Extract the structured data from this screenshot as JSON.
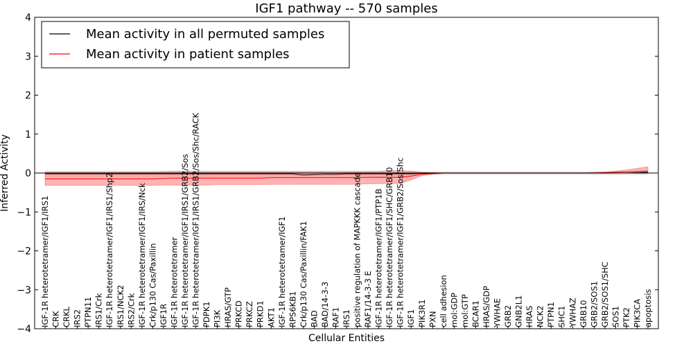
{
  "chart_data": {
    "type": "line",
    "title": "IGF1 pathway -- 570 samples",
    "xlabel": "Cellular Entities",
    "ylabel": "Inferred Activity",
    "ylim": [
      -4,
      4
    ],
    "yticks": [
      -4,
      -3,
      -2,
      -1,
      0,
      1,
      2,
      3,
      4
    ],
    "grid": false,
    "legend_position": "top-left",
    "categories": [
      "IGF-1R heterotetramer/IGF1/IRS1",
      "CRK",
      "CRKL",
      "IRS2",
      "PTPN11",
      "IRS1/Crk",
      "IGF-1R heterotetramer/IGF1/IRS1/Shp2",
      "IRS1/NCK2",
      "IRS2/Crk",
      "IGF-1R heterotetramer/IGF1/IRS/Nck",
      "Crk/p130 Cas/Paxillin",
      "IGF1R",
      "IGF-1R heterotetramer",
      "IGF-1R heterotetramer/IGF1/IRS1/GRB2/Sos",
      "IGF-1R heterotetramer/IGF1/IRS1/GRB2/Sos/Shc/RACK",
      "PDPK1",
      "PI3K",
      "HRAS/GTP",
      "PRKCD",
      "PRKCZ",
      "PRKD1",
      "AKT1",
      "IGF-1R heterotetramer/IGF1",
      "RPS6KB1",
      "Crk/p130 Cas/Paxillin/FAK1",
      "BAD",
      "BAD/14-3-3",
      "RAF1",
      "IRS1",
      "positive regulation of MAPKKK cascade",
      "RAF1/14-3-3 E",
      "IGF-1R heterotetramer/IGF1/PTP1B",
      "IGF-1R heterotetramer/IGF1/SHC/GRB10",
      "IGF-1R heterotetramer/IGF1/GRB2/Sos/Shc",
      "IGF1",
      "PIK3R1",
      "PXN",
      "cell adhesion",
      "mol:GDP",
      "mol:GTP",
      "BCAR1",
      "HRAS/GDP",
      "YWHAE",
      "GRB2",
      "GNB2L1",
      "HRAS",
      "NCK2",
      "PTPN1",
      "SHC1",
      "YWHAZ",
      "GRB10",
      "GRB2/SOS1",
      "GRB2/SOS1/SHC",
      "SOS1",
      "PTK2",
      "PIK3CA",
      "apoptosis"
    ],
    "series": [
      {
        "name": "Mean activity in all permuted samples",
        "color": "#000000",
        "values": [
          -0.02,
          -0.02,
          -0.02,
          -0.02,
          -0.02,
          -0.02,
          -0.02,
          -0.02,
          -0.02,
          -0.02,
          -0.02,
          -0.02,
          -0.02,
          -0.02,
          -0.02,
          -0.02,
          -0.02,
          -0.02,
          -0.02,
          -0.02,
          -0.02,
          -0.02,
          -0.02,
          -0.02,
          -0.05,
          -0.04,
          -0.03,
          -0.03,
          -0.02,
          -0.02,
          -0.02,
          -0.02,
          -0.02,
          -0.02,
          -0.02,
          -0.01,
          -0.01,
          0.0,
          0.0,
          0.0,
          0.0,
          0.0,
          0.0,
          0.0,
          0.0,
          0.0,
          0.0,
          0.0,
          0.0,
          0.0,
          0.0,
          0.0,
          0.0,
          0.0,
          0.0,
          0.01,
          0.02
        ],
        "band": {
          "color": "#cccccc",
          "lower": [
            -0.1,
            -0.1,
            -0.1,
            -0.1,
            -0.1,
            -0.1,
            -0.1,
            -0.1,
            -0.1,
            -0.1,
            -0.1,
            -0.1,
            -0.1,
            -0.1,
            -0.1,
            -0.1,
            -0.1,
            -0.1,
            -0.1,
            -0.1,
            -0.1,
            -0.1,
            -0.1,
            -0.1,
            -0.1,
            -0.1,
            -0.1,
            -0.1,
            -0.1,
            -0.1,
            -0.1,
            -0.1,
            -0.1,
            -0.1,
            -0.08,
            -0.06,
            -0.05,
            -0.05,
            -0.05,
            -0.05,
            -0.05,
            -0.05,
            -0.05,
            -0.05,
            -0.05,
            -0.05,
            -0.05,
            -0.05,
            -0.05,
            -0.05,
            -0.05,
            -0.05,
            -0.05,
            -0.05,
            -0.05,
            -0.05,
            -0.05
          ],
          "upper": [
            0.06,
            0.06,
            0.06,
            0.06,
            0.06,
            0.06,
            0.06,
            0.06,
            0.06,
            0.06,
            0.06,
            0.06,
            0.06,
            0.06,
            0.06,
            0.06,
            0.06,
            0.06,
            0.06,
            0.06,
            0.06,
            0.06,
            0.06,
            0.06,
            0.06,
            0.06,
            0.06,
            0.06,
            0.06,
            0.06,
            0.06,
            0.06,
            0.06,
            0.06,
            0.05,
            0.04,
            0.04,
            0.04,
            0.04,
            0.04,
            0.04,
            0.04,
            0.04,
            0.04,
            0.04,
            0.04,
            0.04,
            0.04,
            0.04,
            0.04,
            0.04,
            0.04,
            0.04,
            0.04,
            0.04,
            0.05,
            0.06
          ]
        }
      },
      {
        "name": "Mean activity in patient samples",
        "color": "#ff0000",
        "values": [
          -0.15,
          -0.15,
          -0.15,
          -0.15,
          -0.15,
          -0.15,
          -0.15,
          -0.15,
          -0.15,
          -0.15,
          -0.15,
          -0.14,
          -0.13,
          -0.13,
          -0.13,
          -0.13,
          -0.13,
          -0.13,
          -0.13,
          -0.13,
          -0.13,
          -0.12,
          -0.12,
          -0.12,
          -0.12,
          -0.12,
          -0.12,
          -0.12,
          -0.12,
          -0.12,
          -0.11,
          -0.11,
          -0.11,
          -0.11,
          -0.08,
          -0.03,
          -0.01,
          0.0,
          0.0,
          0.0,
          0.0,
          0.0,
          0.0,
          0.0,
          0.0,
          0.0,
          0.0,
          0.0,
          0.0,
          0.0,
          0.0,
          0.0,
          0.01,
          0.02,
          0.03,
          0.04,
          0.05
        ],
        "band": {
          "color": "#ff8080",
          "lower": [
            -0.32,
            -0.32,
            -0.32,
            -0.32,
            -0.32,
            -0.32,
            -0.32,
            -0.32,
            -0.32,
            -0.32,
            -0.32,
            -0.31,
            -0.31,
            -0.31,
            -0.31,
            -0.31,
            -0.3,
            -0.3,
            -0.3,
            -0.3,
            -0.3,
            -0.29,
            -0.29,
            -0.29,
            -0.29,
            -0.29,
            -0.29,
            -0.29,
            -0.29,
            -0.29,
            -0.28,
            -0.27,
            -0.27,
            -0.27,
            -0.18,
            -0.07,
            -0.03,
            -0.01,
            -0.01,
            -0.01,
            -0.01,
            -0.01,
            -0.01,
            -0.01,
            -0.01,
            -0.01,
            -0.01,
            -0.01,
            -0.01,
            -0.01,
            -0.01,
            -0.01,
            -0.01,
            0.0,
            0.0,
            0.0,
            0.0
          ],
          "upper": [
            0.02,
            0.02,
            0.02,
            0.02,
            0.02,
            0.02,
            0.02,
            0.02,
            0.02,
            0.02,
            0.02,
            0.03,
            0.04,
            0.04,
            0.04,
            0.03,
            0.03,
            0.03,
            0.03,
            0.03,
            0.03,
            0.03,
            0.03,
            0.03,
            0.03,
            0.03,
            0.03,
            0.03,
            0.03,
            0.03,
            0.03,
            0.04,
            0.06,
            0.06,
            0.05,
            0.02,
            0.01,
            0.01,
            0.01,
            0.01,
            0.01,
            0.01,
            0.01,
            0.01,
            0.01,
            0.01,
            0.01,
            0.01,
            0.01,
            0.01,
            0.01,
            0.02,
            0.03,
            0.05,
            0.08,
            0.12,
            0.16
          ]
        }
      }
    ]
  }
}
